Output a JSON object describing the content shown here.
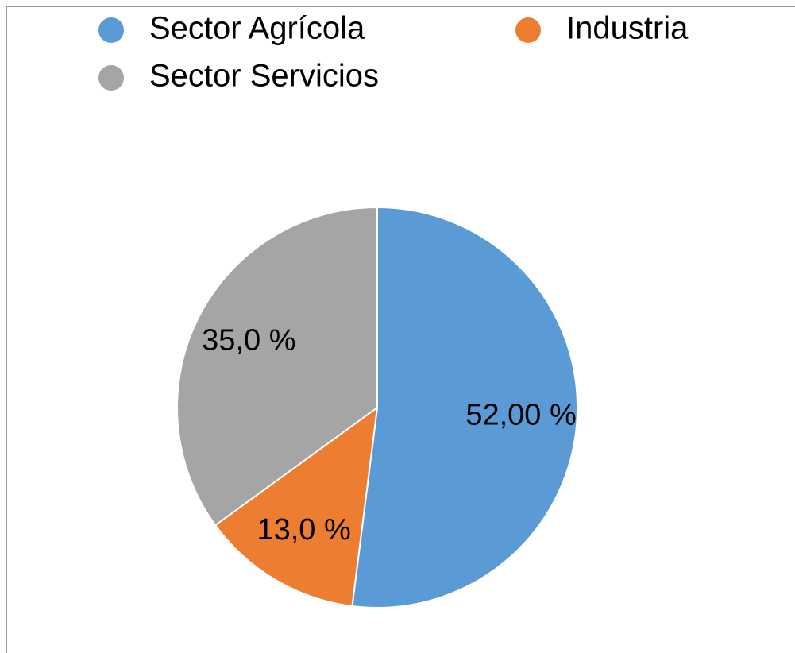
{
  "chart_data": {
    "type": "pie",
    "categories": [
      "Sector Agrícola",
      "Industria",
      "Sector Servicios"
    ],
    "values": [
      52,
      13,
      35
    ],
    "value_labels": [
      "52,00 %",
      "13,0 %",
      "35,0 %"
    ],
    "colors": [
      "#5b9bd5",
      "#ed7d31",
      "#a5a5a5"
    ],
    "legend": "top"
  }
}
